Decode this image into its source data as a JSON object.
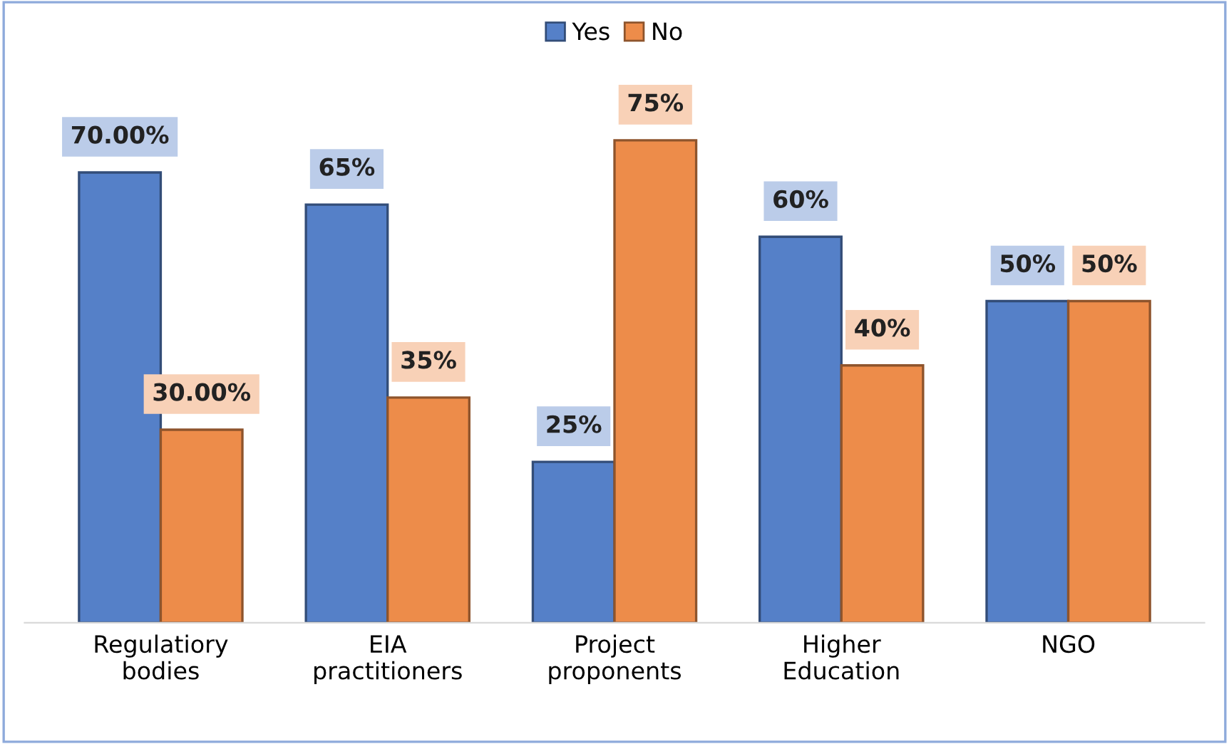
{
  "chart_data": {
    "type": "bar",
    "categories": [
      "Regulatiory\nbodies",
      "EIA\npractitioners",
      "Project\nproponents",
      "Higher\nEducation",
      "NGO"
    ],
    "series": [
      {
        "name": "Yes",
        "color": "#5580c8",
        "values": [
          70,
          65,
          25,
          60,
          50
        ],
        "value_labels": [
          "70.00%",
          "65%",
          "25%",
          "60%",
          "50%"
        ]
      },
      {
        "name": "No",
        "color": "#ed8c4a",
        "values": [
          30,
          35,
          75,
          40,
          50
        ],
        "value_labels": [
          "30.00%",
          "35%",
          "75%",
          "40%",
          "50%"
        ]
      }
    ],
    "legend": "top",
    "grid": false
  }
}
